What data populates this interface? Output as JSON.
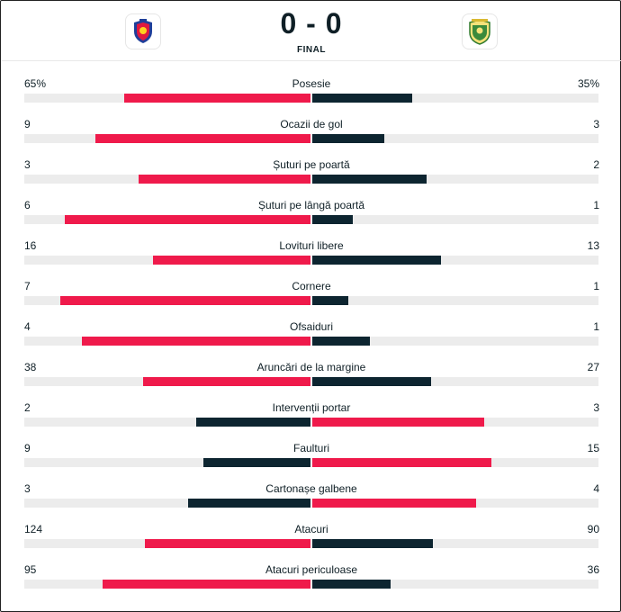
{
  "header": {
    "home_score": "0",
    "separator": "-",
    "away_score": "0",
    "status": "FINAL",
    "home_logo_icon": "club-crest-icon",
    "away_logo_icon": "club-crest-icon"
  },
  "colors": {
    "red": "#ef1a4b",
    "dark": "#0d2530",
    "track": "#ececec"
  },
  "stats": [
    {
      "name": "Posesie",
      "home": "65%",
      "away": "35%",
      "home_value": 65,
      "away_value": 35,
      "max": 100
    },
    {
      "name": "Ocazii de gol",
      "home": "9",
      "away": "3",
      "home_value": 9,
      "away_value": 3,
      "max": 12
    },
    {
      "name": "Șuturi pe poartă",
      "home": "3",
      "away": "2",
      "home_value": 3,
      "away_value": 2,
      "max": 5
    },
    {
      "name": "Șuturi pe lângă poartă",
      "home": "6",
      "away": "1",
      "home_value": 6,
      "away_value": 1,
      "max": 7
    },
    {
      "name": "Lovituri libere",
      "home": "16",
      "away": "13",
      "home_value": 16,
      "away_value": 13,
      "max": 29
    },
    {
      "name": "Cornere",
      "home": "7",
      "away": "1",
      "home_value": 7,
      "away_value": 1,
      "max": 8
    },
    {
      "name": "Ofsaiduri",
      "home": "4",
      "away": "1",
      "home_value": 4,
      "away_value": 1,
      "max": 5
    },
    {
      "name": "Aruncări de la margine",
      "home": "38",
      "away": "27",
      "home_value": 38,
      "away_value": 27,
      "max": 65
    },
    {
      "name": "Intervenții portar",
      "home": "2",
      "away": "3",
      "home_value": 2,
      "away_value": 3,
      "max": 5
    },
    {
      "name": "Faulturi",
      "home": "9",
      "away": "15",
      "home_value": 9,
      "away_value": 15,
      "max": 24
    },
    {
      "name": "Cartonașe galbene",
      "home": "3",
      "away": "4",
      "home_value": 3,
      "away_value": 4,
      "max": 7
    },
    {
      "name": "Atacuri",
      "home": "124",
      "away": "90",
      "home_value": 124,
      "away_value": 90,
      "max": 214
    },
    {
      "name": "Atacuri periculoase",
      "home": "95",
      "away": "36",
      "home_value": 95,
      "away_value": 36,
      "max": 131
    }
  ]
}
